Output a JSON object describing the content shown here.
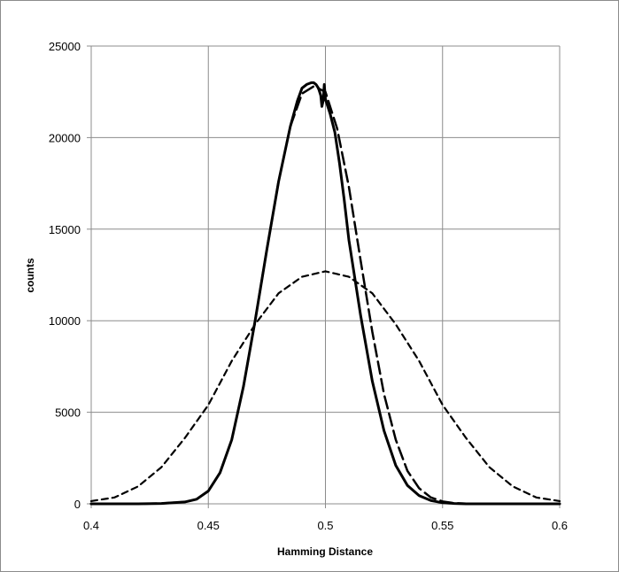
{
  "chart_data": {
    "type": "line",
    "title": "",
    "xlabel": "Hamming Distance",
    "ylabel": "counts",
    "xlim": [
      0.4,
      0.6
    ],
    "ylim": [
      0,
      25000
    ],
    "x_ticks": [
      "0.4",
      "0.45",
      "0.5",
      "0.55",
      "0.6"
    ],
    "y_ticks": [
      "0",
      "5000",
      "10000",
      "15000",
      "20000",
      "25000"
    ],
    "grid": true,
    "legend": "none",
    "series": [
      {
        "style": "solid",
        "color": "#000000",
        "x": [
          0.4,
          0.42,
          0.43,
          0.44,
          0.445,
          0.45,
          0.455,
          0.46,
          0.465,
          0.47,
          0.475,
          0.48,
          0.485,
          0.488,
          0.49,
          0.492,
          0.494,
          0.495,
          0.496,
          0.497,
          0.4975,
          0.498,
          0.4985,
          0.499,
          0.4995,
          0.5,
          0.501,
          0.502,
          0.504,
          0.506,
          0.508,
          0.51,
          0.515,
          0.52,
          0.525,
          0.53,
          0.535,
          0.54,
          0.545,
          0.55,
          0.555,
          0.56,
          0.57,
          0.58,
          0.6
        ],
        "values": [
          0,
          0,
          20,
          100,
          250,
          700,
          1700,
          3500,
          6400,
          10000,
          13900,
          17600,
          20600,
          22000,
          22700,
          22900,
          23000,
          23000,
          22900,
          22700,
          22500,
          22300,
          21700,
          22000,
          22900,
          22100,
          21700,
          21300,
          20300,
          18600,
          16600,
          14400,
          10300,
          6700,
          4000,
          2100,
          1000,
          450,
          180,
          60,
          20,
          0,
          0,
          0,
          0
        ]
      },
      {
        "style": "long-dash",
        "color": "#000000",
        "x": [
          0.4,
          0.42,
          0.43,
          0.44,
          0.445,
          0.45,
          0.455,
          0.46,
          0.465,
          0.47,
          0.475,
          0.48,
          0.485,
          0.49,
          0.495,
          0.5,
          0.505,
          0.51,
          0.515,
          0.52,
          0.525,
          0.53,
          0.535,
          0.54,
          0.545,
          0.55,
          0.555,
          0.56,
          0.57,
          0.58,
          0.6
        ],
        "values": [
          0,
          0,
          20,
          100,
          250,
          700,
          1700,
          3500,
          6400,
          10000,
          13900,
          17600,
          20600,
          22400,
          22800,
          22500,
          20500,
          17300,
          13300,
          9400,
          6000,
          3500,
          1800,
          850,
          350,
          130,
          40,
          10,
          0,
          0,
          0
        ]
      },
      {
        "style": "short-dash",
        "color": "#000000",
        "x": [
          0.4,
          0.41,
          0.42,
          0.43,
          0.44,
          0.45,
          0.46,
          0.47,
          0.48,
          0.49,
          0.5,
          0.51,
          0.52,
          0.53,
          0.54,
          0.55,
          0.56,
          0.57,
          0.58,
          0.59,
          0.6
        ],
        "values": [
          150,
          350,
          950,
          2000,
          3600,
          5400,
          7800,
          9800,
          11500,
          12400,
          12700,
          12400,
          11500,
          9800,
          7800,
          5400,
          3600,
          2000,
          950,
          350,
          150
        ]
      }
    ]
  }
}
